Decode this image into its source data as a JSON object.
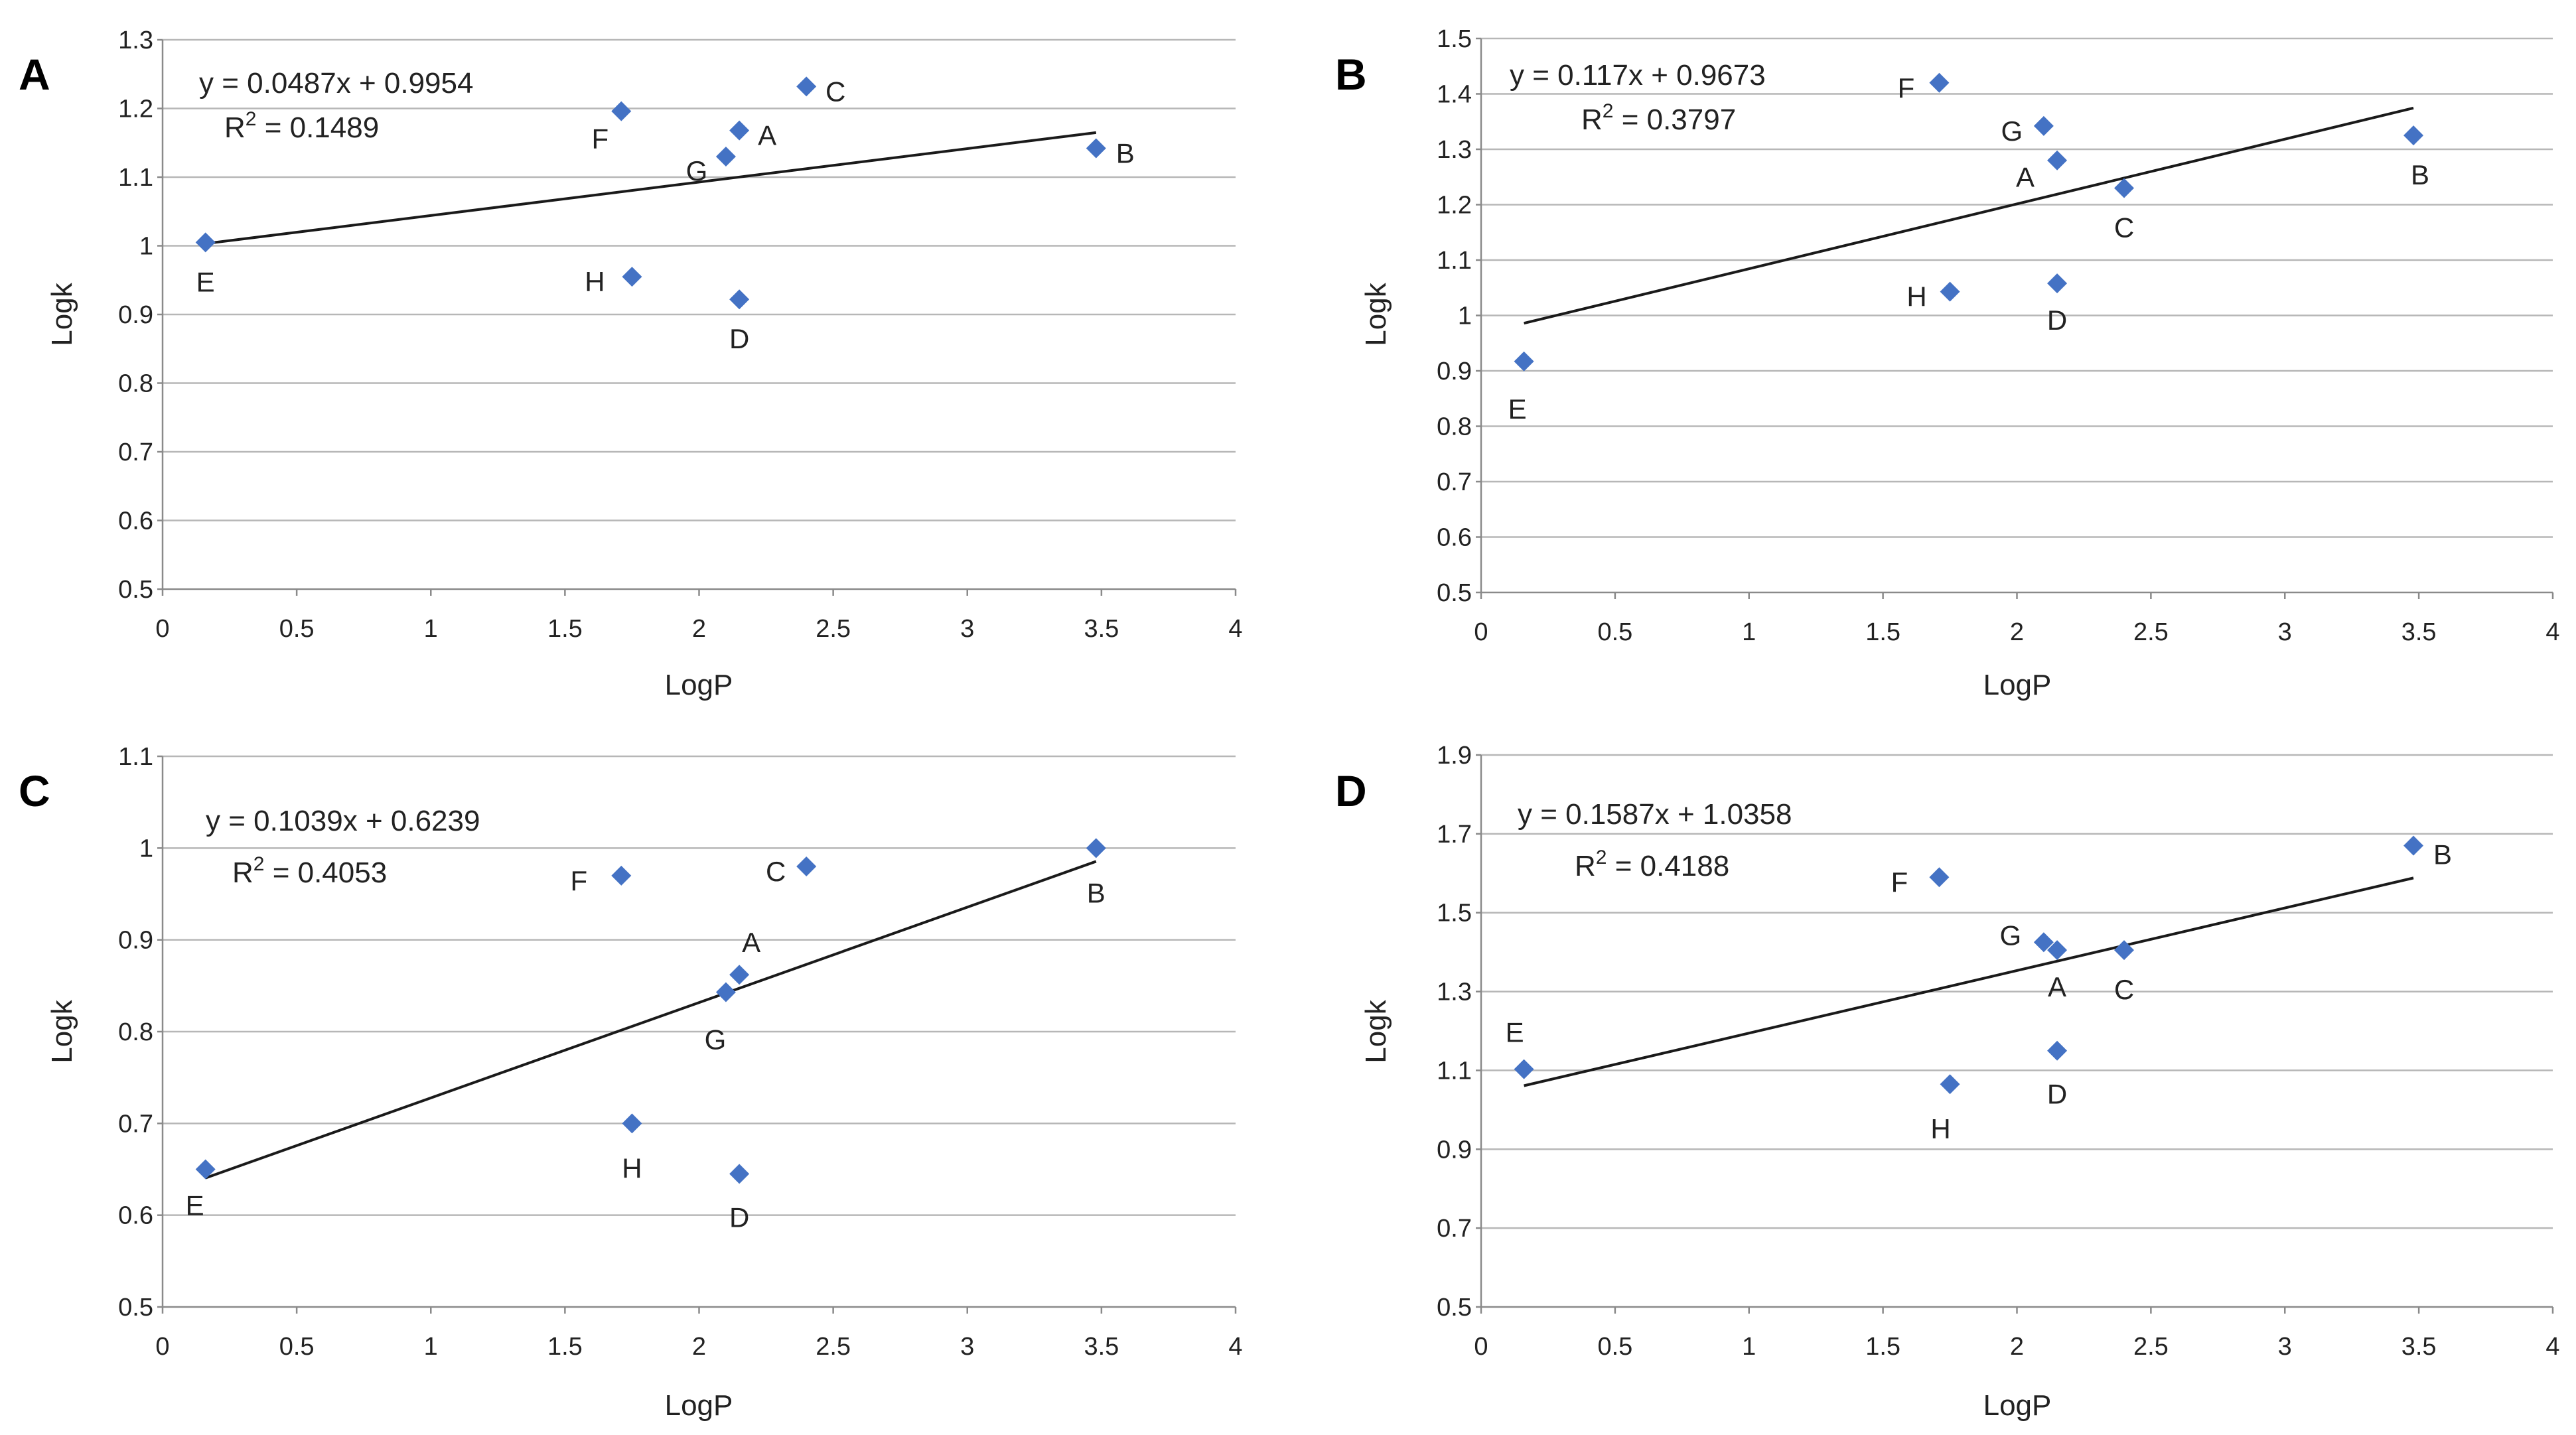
{
  "chart_data": [
    {
      "type": "scatter",
      "panel": "A",
      "xlabel": "LogP",
      "ylabel": "Logk",
      "xlim": [
        0,
        4
      ],
      "ylim": [
        0.5,
        1.3
      ],
      "xticks": [
        "0",
        "0.5",
        "1",
        "1.5",
        "2",
        "2.5",
        "3",
        "3.5",
        "4"
      ],
      "yticks": [
        "0.5",
        "0.6",
        "0.7",
        "0.8",
        "0.9",
        "1",
        "1.1",
        "1.2",
        "1.3"
      ],
      "grid": true,
      "equation": "y = 0.0487x + 0.9954",
      "r2_prefix": "R",
      "r2_sup": "2",
      "r2_value": " = 0.1489",
      "trendline": {
        "slope": 0.0487,
        "intercept": 0.9954,
        "x_range": [
          0.16,
          3.48
        ]
      },
      "points": [
        {
          "label": "E",
          "x": 0.16,
          "y": 1.005
        },
        {
          "label": "F",
          "x": 1.71,
          "y": 1.196
        },
        {
          "label": "H",
          "x": 1.75,
          "y": 0.955
        },
        {
          "label": "G",
          "x": 2.1,
          "y": 1.13
        },
        {
          "label": "A",
          "x": 2.15,
          "y": 1.168
        },
        {
          "label": "D",
          "x": 2.15,
          "y": 0.922
        },
        {
          "label": "C",
          "x": 2.4,
          "y": 1.232
        },
        {
          "label": "B",
          "x": 3.48,
          "y": 1.142
        }
      ]
    },
    {
      "type": "scatter",
      "panel": "B",
      "xlabel": "LogP",
      "ylabel": "Logk",
      "xlim": [
        0,
        4
      ],
      "ylim": [
        0.5,
        1.5
      ],
      "xticks": [
        "0",
        "0.5",
        "1",
        "1.5",
        "2",
        "2.5",
        "3",
        "3.5",
        "4"
      ],
      "yticks": [
        "0.5",
        "0.6",
        "0.7",
        "0.8",
        "0.9",
        "1",
        "1.1",
        "1.2",
        "1.3",
        "1.4",
        "1.5"
      ],
      "grid": true,
      "equation": "y = 0.117x + 0.9673",
      "r2_prefix": "R",
      "r2_sup": "2",
      "r2_value": " = 0.3797",
      "trendline": {
        "slope": 0.117,
        "intercept": 0.9673,
        "x_range": [
          0.16,
          3.48
        ]
      },
      "points": [
        {
          "label": "E",
          "x": 0.16,
          "y": 0.917
        },
        {
          "label": "F",
          "x": 1.71,
          "y": 1.42
        },
        {
          "label": "H",
          "x": 1.75,
          "y": 1.043
        },
        {
          "label": "G",
          "x": 2.1,
          "y": 1.342
        },
        {
          "label": "A",
          "x": 2.15,
          "y": 1.28
        },
        {
          "label": "D",
          "x": 2.15,
          "y": 1.058
        },
        {
          "label": "C",
          "x": 2.4,
          "y": 1.23
        },
        {
          "label": "B",
          "x": 3.48,
          "y": 1.325
        }
      ]
    },
    {
      "type": "scatter",
      "panel": "C",
      "xlabel": "LogP",
      "ylabel": "Logk",
      "xlim": [
        0,
        4
      ],
      "ylim": [
        0.5,
        1.1
      ],
      "xticks": [
        "0",
        "0.5",
        "1",
        "1.5",
        "2",
        "2.5",
        "3",
        "3.5",
        "4"
      ],
      "yticks": [
        "0.5",
        "0.6",
        "0.7",
        "0.8",
        "0.9",
        "1",
        "1.1"
      ],
      "grid": true,
      "equation": "y = 0.1039x + 0.6239",
      "r2_prefix": "R",
      "r2_sup": "2",
      "r2_value": " = 0.4053",
      "trendline": {
        "slope": 0.1039,
        "intercept": 0.6239,
        "x_range": [
          0.16,
          3.48
        ]
      },
      "points": [
        {
          "label": "E",
          "x": 0.16,
          "y": 0.65
        },
        {
          "label": "F",
          "x": 1.71,
          "y": 0.97
        },
        {
          "label": "H",
          "x": 1.75,
          "y": 0.7
        },
        {
          "label": "G",
          "x": 2.1,
          "y": 0.843
        },
        {
          "label": "A",
          "x": 2.15,
          "y": 0.862
        },
        {
          "label": "D",
          "x": 2.15,
          "y": 0.645
        },
        {
          "label": "C",
          "x": 2.4,
          "y": 0.98
        },
        {
          "label": "B",
          "x": 3.48,
          "y": 1.0
        }
      ]
    },
    {
      "type": "scatter",
      "panel": "D",
      "xlabel": "LogP",
      "ylabel": "Logk",
      "xlim": [
        0,
        4
      ],
      "ylim": [
        0.5,
        1.9
      ],
      "xticks": [
        "0",
        "0.5",
        "1",
        "1.5",
        "2",
        "2.5",
        "3",
        "3.5",
        "4"
      ],
      "yticks": [
        "0.5",
        "0.7",
        "0.9",
        "1.1",
        "1.3",
        "1.5",
        "1.7",
        "1.9"
      ],
      "grid": true,
      "equation": "y = 0.1587x + 1.0358",
      "r2_prefix": "R",
      "r2_sup": "2",
      "r2_value": " = 0.4188",
      "trendline": {
        "slope": 0.1587,
        "intercept": 1.0358,
        "x_range": [
          0.16,
          3.48
        ]
      },
      "points": [
        {
          "label": "E",
          "x": 0.16,
          "y": 1.103
        },
        {
          "label": "F",
          "x": 1.71,
          "y": 1.59
        },
        {
          "label": "H",
          "x": 1.75,
          "y": 1.065
        },
        {
          "label": "G",
          "x": 2.1,
          "y": 1.425
        },
        {
          "label": "A",
          "x": 2.15,
          "y": 1.405
        },
        {
          "label": "D",
          "x": 2.15,
          "y": 1.15
        },
        {
          "label": "C",
          "x": 2.4,
          "y": 1.405
        },
        {
          "label": "B",
          "x": 3.48,
          "y": 1.67
        }
      ]
    }
  ]
}
